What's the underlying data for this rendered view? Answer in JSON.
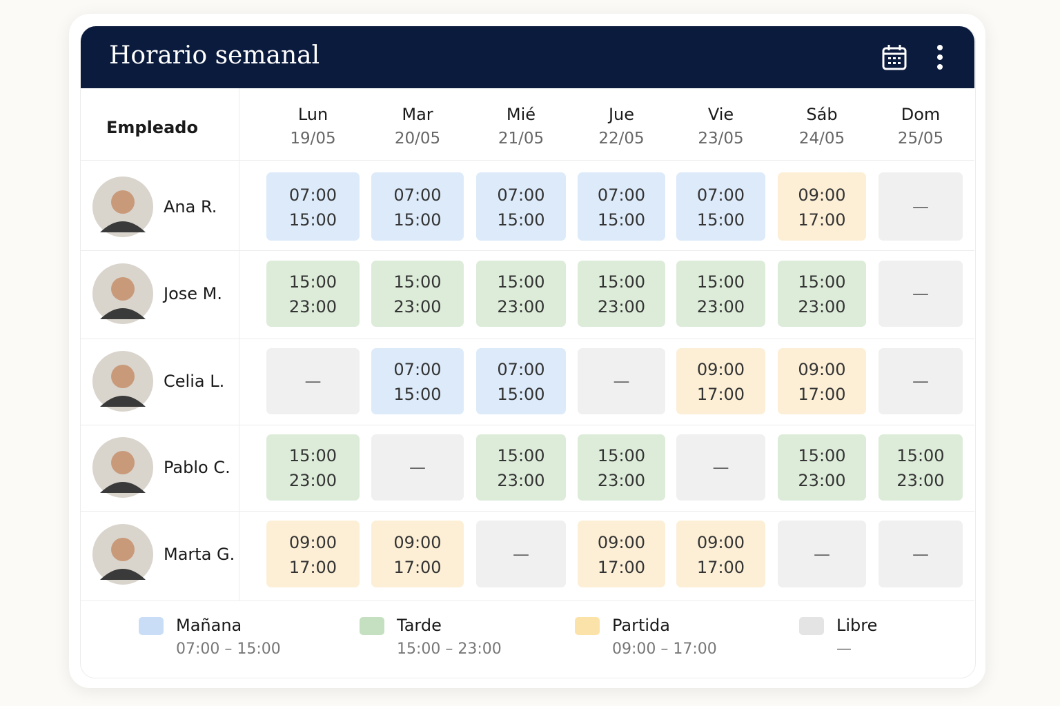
{
  "header": {
    "title": "Horario semanal"
  },
  "table": {
    "employee_header": "Empleado",
    "days": [
      {
        "name": "Lun",
        "date": "19/05"
      },
      {
        "name": "Mar",
        "date": "20/05"
      },
      {
        "name": "Mié",
        "date": "21/05"
      },
      {
        "name": "Jue",
        "date": "22/05"
      },
      {
        "name": "Vie",
        "date": "23/05"
      },
      {
        "name": "Sáb",
        "date": "24/05"
      },
      {
        "name": "Dom",
        "date": "25/05"
      }
    ],
    "rows": [
      {
        "name": "Ana R.",
        "shifts": [
          {
            "start": "07:00",
            "end": "15:00",
            "color": "#dceaf9"
          },
          {
            "start": "07:00",
            "end": "15:00",
            "color": "#dceaf9"
          },
          {
            "start": "07:00",
            "end": "15:00",
            "color": "#dceaf9"
          },
          {
            "start": "07:00",
            "end": "15:00",
            "color": "#dceaf9"
          },
          {
            "start": "07:00",
            "end": "15:00",
            "color": "#dceaf9"
          },
          {
            "start": "09:00",
            "end": "17:00",
            "color": "#fcefd6"
          },
          {
            "label": "—",
            "color": "#f0f0f0"
          }
        ]
      },
      {
        "name": "Jose M.",
        "shifts": [
          {
            "start": "15:00",
            "end": "23:00",
            "color": "#dcecd9"
          },
          {
            "start": "15:00",
            "end": "23:00",
            "color": "#dcecd9"
          },
          {
            "start": "15:00",
            "end": "23:00",
            "color": "#dcecd9"
          },
          {
            "start": "15:00",
            "end": "23:00",
            "color": "#dcecd9"
          },
          {
            "start": "15:00",
            "end": "23:00",
            "color": "#dcecd9"
          },
          {
            "start": "15:00",
            "end": "23:00",
            "color": "#dcecd9"
          },
          {
            "label": "—",
            "color": "#f0f0f0"
          }
        ]
      },
      {
        "name": "Celia L.",
        "shifts": [
          {
            "label": "—",
            "color": "#f0f0f0"
          },
          {
            "start": "07:00",
            "end": "15:00",
            "color": "#dceaf9"
          },
          {
            "start": "07:00",
            "end": "15:00",
            "color": "#dceaf9"
          },
          {
            "label": "—",
            "color": "#f0f0f0"
          },
          {
            "start": "09:00",
            "end": "17:00",
            "color": "#fcefd6"
          },
          {
            "start": "09:00",
            "end": "17:00",
            "color": "#fcefd6"
          },
          {
            "label": "—",
            "color": "#f0f0f0"
          }
        ]
      },
      {
        "name": "Pablo C.",
        "shifts": [
          {
            "start": "15:00",
            "end": "23:00",
            "color": "#dcecd9"
          },
          {
            "label": "—",
            "color": "#f0f0f0"
          },
          {
            "start": "15:00",
            "end": "23:00",
            "color": "#dcecd9"
          },
          {
            "start": "15:00",
            "end": "23:00",
            "color": "#dcecd9"
          },
          {
            "label": "—",
            "color": "#f0f0f0"
          },
          {
            "start": "15:00",
            "end": "23:00",
            "color": "#dcecd9"
          },
          {
            "start": "15:00",
            "end": "23:00",
            "color": "#dcecd9"
          }
        ]
      },
      {
        "name": "Marta G.",
        "shifts": [
          {
            "start": "09:00",
            "end": "17:00",
            "color": "#fcefd6"
          },
          {
            "start": "09:00",
            "end": "17:00",
            "color": "#fcefd6"
          },
          {
            "label": "—",
            "color": "#f0f0f0"
          },
          {
            "start": "09:00",
            "end": "17:00",
            "color": "#fcefd6"
          },
          {
            "start": "09:00",
            "end": "17:00",
            "color": "#fcefd6"
          },
          {
            "label": "—",
            "color": "#f0f0f0"
          },
          {
            "label": "—",
            "color": "#f0f0f0"
          }
        ]
      }
    ]
  },
  "legend": [
    {
      "label": "Mañana",
      "range": "07:00 – 15:00",
      "color": "#c9def6"
    },
    {
      "label": "Tarde",
      "range": "15:00 – 23:00",
      "color": "#c4e0c0"
    },
    {
      "label": "Partida",
      "range": "09:00 – 17:00",
      "color": "#fbe2a8"
    },
    {
      "label": "Libre",
      "range": "—",
      "color": "#e4e4e4"
    }
  ]
}
